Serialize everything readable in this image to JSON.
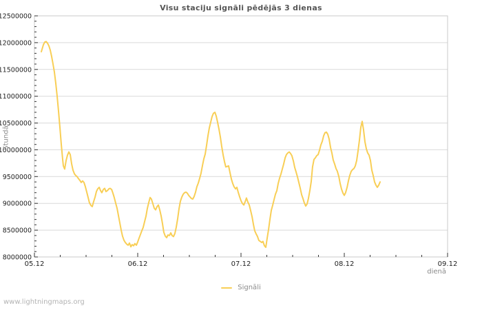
{
  "page": {
    "watermark": "www.lightningmaps.org"
  },
  "chart_data": {
    "type": "line",
    "title": "Visu staciju signāli pēdējās 3 dienas",
    "xlabel": "dienā",
    "ylabel": "Stundā",
    "grid": true,
    "legend_position": "bottom-center",
    "legend": [
      {
        "name": "Signāli",
        "color": "#f8ce55"
      }
    ],
    "ylim": [
      8000000,
      12500000
    ],
    "xlim_days": [
      0,
      4
    ],
    "y_ticks": [
      8000000,
      8500000,
      9000000,
      9500000,
      10000000,
      10500000,
      11000000,
      11500000,
      12000000,
      12500000
    ],
    "y_minor_step": 100000,
    "x_ticks": [
      {
        "t": 0,
        "label": "05.12"
      },
      {
        "t": 1,
        "label": "06.12"
      },
      {
        "t": 2,
        "label": "07.12"
      },
      {
        "t": 3,
        "label": "08.12"
      },
      {
        "t": 4,
        "label": "09.12"
      }
    ],
    "x_minor_step": 0.25,
    "colors": {
      "line": "#f8ce55",
      "grid": "#d9d9d9",
      "border": "#c9c9c9",
      "tick": "#333333",
      "tick_label": "#222222",
      "title": "#555555",
      "axis_title": "#8a8a8a",
      "legend_label": "#8a8a8a",
      "watermark": "#b3b3b3"
    },
    "series": [
      {
        "name": "Signāli",
        "unit": "signāli stundā",
        "points": [
          [
            0.067,
            11830000
          ],
          [
            0.087,
            11960000
          ],
          [
            0.1,
            12010000
          ],
          [
            0.113,
            12020000
          ],
          [
            0.127,
            11990000
          ],
          [
            0.14,
            11940000
          ],
          [
            0.153,
            11860000
          ],
          [
            0.167,
            11740000
          ],
          [
            0.18,
            11600000
          ],
          [
            0.193,
            11450000
          ],
          [
            0.207,
            11240000
          ],
          [
            0.22,
            11000000
          ],
          [
            0.233,
            10720000
          ],
          [
            0.247,
            10420000
          ],
          [
            0.26,
            10100000
          ],
          [
            0.273,
            9820000
          ],
          [
            0.28,
            9700000
          ],
          [
            0.293,
            9640000
          ],
          [
            0.307,
            9800000
          ],
          [
            0.32,
            9900000
          ],
          [
            0.333,
            9960000
          ],
          [
            0.347,
            9910000
          ],
          [
            0.36,
            9740000
          ],
          [
            0.373,
            9620000
          ],
          [
            0.387,
            9550000
          ],
          [
            0.4,
            9520000
          ],
          [
            0.413,
            9500000
          ],
          [
            0.427,
            9460000
          ],
          [
            0.44,
            9430000
          ],
          [
            0.453,
            9390000
          ],
          [
            0.467,
            9420000
          ],
          [
            0.48,
            9390000
          ],
          [
            0.493,
            9310000
          ],
          [
            0.507,
            9210000
          ],
          [
            0.52,
            9110000
          ],
          [
            0.533,
            9010000
          ],
          [
            0.547,
            8960000
          ],
          [
            0.56,
            8940000
          ],
          [
            0.573,
            9030000
          ],
          [
            0.587,
            9120000
          ],
          [
            0.6,
            9220000
          ],
          [
            0.613,
            9270000
          ],
          [
            0.627,
            9300000
          ],
          [
            0.64,
            9240000
          ],
          [
            0.653,
            9200000
          ],
          [
            0.667,
            9260000
          ],
          [
            0.68,
            9280000
          ],
          [
            0.693,
            9220000
          ],
          [
            0.707,
            9240000
          ],
          [
            0.72,
            9270000
          ],
          [
            0.733,
            9280000
          ],
          [
            0.747,
            9260000
          ],
          [
            0.76,
            9190000
          ],
          [
            0.773,
            9110000
          ],
          [
            0.787,
            9000000
          ],
          [
            0.8,
            8910000
          ],
          [
            0.813,
            8780000
          ],
          [
            0.827,
            8630000
          ],
          [
            0.84,
            8500000
          ],
          [
            0.853,
            8390000
          ],
          [
            0.867,
            8310000
          ],
          [
            0.88,
            8270000
          ],
          [
            0.893,
            8240000
          ],
          [
            0.907,
            8220000
          ],
          [
            0.92,
            8260000
          ],
          [
            0.933,
            8190000
          ],
          [
            0.947,
            8230000
          ],
          [
            0.96,
            8210000
          ],
          [
            0.973,
            8250000
          ],
          [
            0.987,
            8220000
          ],
          [
            1.0,
            8280000
          ],
          [
            1.013,
            8350000
          ],
          [
            1.027,
            8420000
          ],
          [
            1.04,
            8490000
          ],
          [
            1.053,
            8550000
          ],
          [
            1.067,
            8660000
          ],
          [
            1.08,
            8760000
          ],
          [
            1.093,
            8900000
          ],
          [
            1.107,
            9020000
          ],
          [
            1.12,
            9110000
          ],
          [
            1.133,
            9080000
          ],
          [
            1.147,
            8990000
          ],
          [
            1.16,
            8910000
          ],
          [
            1.173,
            8880000
          ],
          [
            1.187,
            8940000
          ],
          [
            1.2,
            8970000
          ],
          [
            1.213,
            8880000
          ],
          [
            1.227,
            8760000
          ],
          [
            1.24,
            8620000
          ],
          [
            1.253,
            8460000
          ],
          [
            1.267,
            8390000
          ],
          [
            1.28,
            8360000
          ],
          [
            1.293,
            8410000
          ],
          [
            1.307,
            8400000
          ],
          [
            1.32,
            8450000
          ],
          [
            1.333,
            8400000
          ],
          [
            1.347,
            8380000
          ],
          [
            1.36,
            8440000
          ],
          [
            1.373,
            8550000
          ],
          [
            1.387,
            8720000
          ],
          [
            1.4,
            8900000
          ],
          [
            1.413,
            9040000
          ],
          [
            1.427,
            9120000
          ],
          [
            1.44,
            9170000
          ],
          [
            1.453,
            9200000
          ],
          [
            1.467,
            9210000
          ],
          [
            1.48,
            9190000
          ],
          [
            1.493,
            9150000
          ],
          [
            1.507,
            9120000
          ],
          [
            1.52,
            9090000
          ],
          [
            1.533,
            9080000
          ],
          [
            1.547,
            9130000
          ],
          [
            1.56,
            9210000
          ],
          [
            1.573,
            9310000
          ],
          [
            1.587,
            9380000
          ],
          [
            1.6,
            9470000
          ],
          [
            1.613,
            9560000
          ],
          [
            1.627,
            9710000
          ],
          [
            1.64,
            9830000
          ],
          [
            1.653,
            9920000
          ],
          [
            1.667,
            10090000
          ],
          [
            1.68,
            10260000
          ],
          [
            1.693,
            10410000
          ],
          [
            1.707,
            10520000
          ],
          [
            1.72,
            10620000
          ],
          [
            1.733,
            10680000
          ],
          [
            1.747,
            10700000
          ],
          [
            1.76,
            10630000
          ],
          [
            1.773,
            10520000
          ],
          [
            1.787,
            10380000
          ],
          [
            1.8,
            10240000
          ],
          [
            1.813,
            10070000
          ],
          [
            1.827,
            9900000
          ],
          [
            1.84,
            9780000
          ],
          [
            1.853,
            9680000
          ],
          [
            1.867,
            9690000
          ],
          [
            1.88,
            9700000
          ],
          [
            1.893,
            9580000
          ],
          [
            1.907,
            9450000
          ],
          [
            1.92,
            9370000
          ],
          [
            1.933,
            9310000
          ],
          [
            1.947,
            9270000
          ],
          [
            1.96,
            9300000
          ],
          [
            1.973,
            9210000
          ],
          [
            1.987,
            9120000
          ],
          [
            2.0,
            9050000
          ],
          [
            2.013,
            9000000
          ],
          [
            2.027,
            8970000
          ],
          [
            2.04,
            9030000
          ],
          [
            2.053,
            9100000
          ],
          [
            2.067,
            9020000
          ],
          [
            2.08,
            8970000
          ],
          [
            2.093,
            8870000
          ],
          [
            2.107,
            8750000
          ],
          [
            2.12,
            8610000
          ],
          [
            2.133,
            8490000
          ],
          [
            2.147,
            8430000
          ],
          [
            2.16,
            8380000
          ],
          [
            2.173,
            8310000
          ],
          [
            2.187,
            8290000
          ],
          [
            2.2,
            8270000
          ],
          [
            2.213,
            8290000
          ],
          [
            2.227,
            8210000
          ],
          [
            2.24,
            8180000
          ],
          [
            2.253,
            8350000
          ],
          [
            2.267,
            8520000
          ],
          [
            2.28,
            8700000
          ],
          [
            2.293,
            8870000
          ],
          [
            2.307,
            8970000
          ],
          [
            2.32,
            9070000
          ],
          [
            2.333,
            9170000
          ],
          [
            2.347,
            9240000
          ],
          [
            2.36,
            9370000
          ],
          [
            2.373,
            9470000
          ],
          [
            2.387,
            9550000
          ],
          [
            2.4,
            9640000
          ],
          [
            2.413,
            9730000
          ],
          [
            2.427,
            9850000
          ],
          [
            2.44,
            9910000
          ],
          [
            2.453,
            9940000
          ],
          [
            2.467,
            9960000
          ],
          [
            2.48,
            9930000
          ],
          [
            2.493,
            9890000
          ],
          [
            2.507,
            9790000
          ],
          [
            2.52,
            9670000
          ],
          [
            2.533,
            9590000
          ],
          [
            2.547,
            9490000
          ],
          [
            2.56,
            9390000
          ],
          [
            2.573,
            9290000
          ],
          [
            2.587,
            9160000
          ],
          [
            2.6,
            9090000
          ],
          [
            2.613,
            9010000
          ],
          [
            2.627,
            8950000
          ],
          [
            2.64,
            8990000
          ],
          [
            2.653,
            9090000
          ],
          [
            2.667,
            9240000
          ],
          [
            2.68,
            9410000
          ],
          [
            2.693,
            9680000
          ],
          [
            2.707,
            9820000
          ],
          [
            2.72,
            9850000
          ],
          [
            2.733,
            9890000
          ],
          [
            2.747,
            9910000
          ],
          [
            2.76,
            9990000
          ],
          [
            2.773,
            10090000
          ],
          [
            2.787,
            10160000
          ],
          [
            2.8,
            10260000
          ],
          [
            2.813,
            10320000
          ],
          [
            2.827,
            10330000
          ],
          [
            2.84,
            10290000
          ],
          [
            2.853,
            10200000
          ],
          [
            2.867,
            10040000
          ],
          [
            2.88,
            9940000
          ],
          [
            2.893,
            9810000
          ],
          [
            2.907,
            9730000
          ],
          [
            2.92,
            9650000
          ],
          [
            2.933,
            9600000
          ],
          [
            2.947,
            9500000
          ],
          [
            2.96,
            9370000
          ],
          [
            2.973,
            9270000
          ],
          [
            2.987,
            9190000
          ],
          [
            3.0,
            9150000
          ],
          [
            3.013,
            9200000
          ],
          [
            3.027,
            9300000
          ],
          [
            3.04,
            9420000
          ],
          [
            3.053,
            9520000
          ],
          [
            3.067,
            9600000
          ],
          [
            3.08,
            9630000
          ],
          [
            3.093,
            9650000
          ],
          [
            3.107,
            9700000
          ],
          [
            3.12,
            9800000
          ],
          [
            3.133,
            9980000
          ],
          [
            3.147,
            10180000
          ],
          [
            3.16,
            10420000
          ],
          [
            3.173,
            10530000
          ],
          [
            3.187,
            10370000
          ],
          [
            3.2,
            10150000
          ],
          [
            3.213,
            10020000
          ],
          [
            3.227,
            9940000
          ],
          [
            3.24,
            9900000
          ],
          [
            3.253,
            9800000
          ],
          [
            3.267,
            9620000
          ],
          [
            3.28,
            9520000
          ],
          [
            3.293,
            9400000
          ],
          [
            3.307,
            9340000
          ],
          [
            3.32,
            9300000
          ],
          [
            3.333,
            9340000
          ],
          [
            3.347,
            9400000
          ]
        ]
      }
    ]
  }
}
